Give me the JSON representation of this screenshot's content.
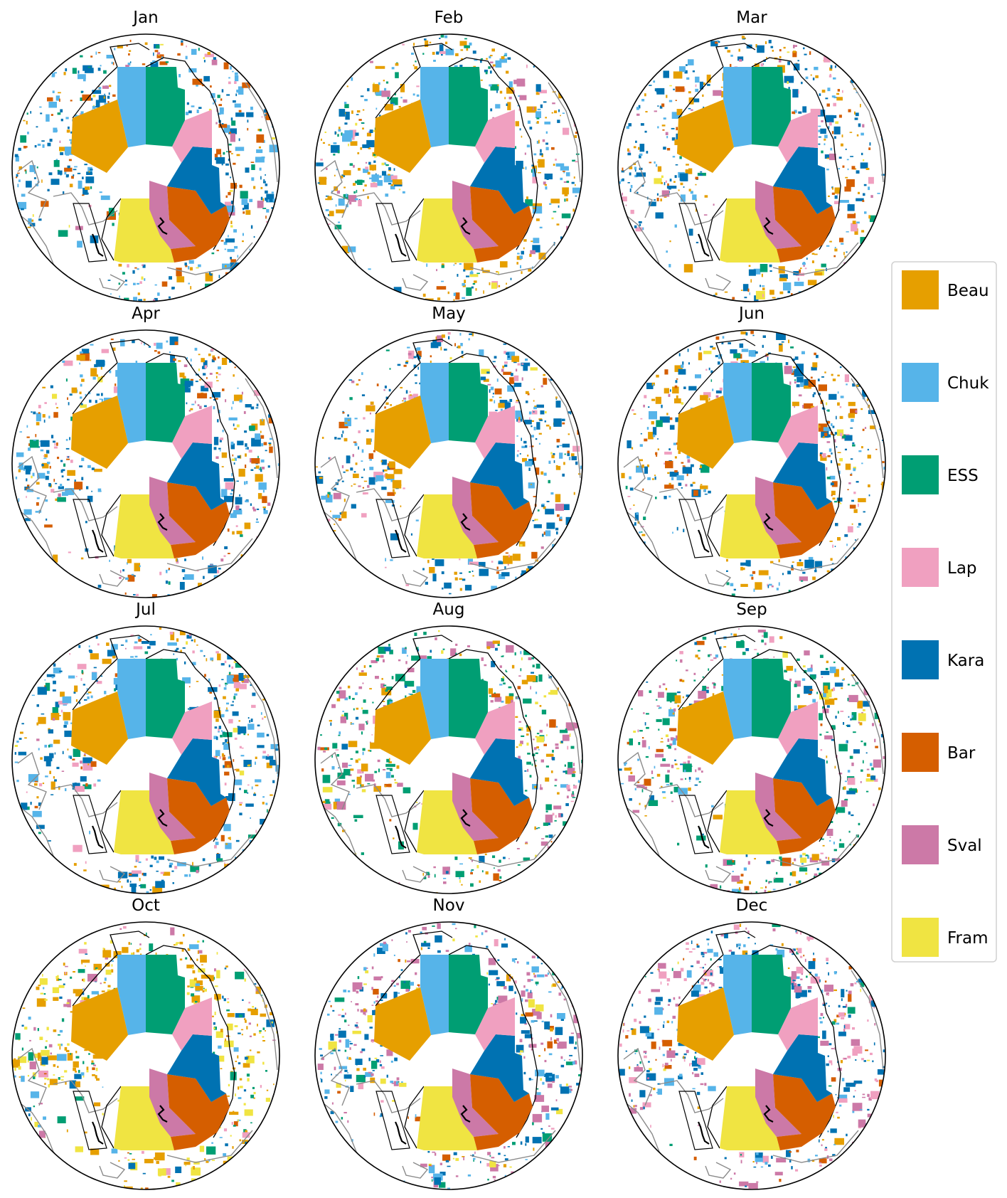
{
  "figure": {
    "panels": [
      {
        "month": "Jan"
      },
      {
        "month": "Feb"
      },
      {
        "month": "Mar"
      },
      {
        "month": "Apr"
      },
      {
        "month": "May"
      },
      {
        "month": "Jun"
      },
      {
        "month": "Jul"
      },
      {
        "month": "Aug"
      },
      {
        "month": "Sep"
      },
      {
        "month": "Oct"
      },
      {
        "month": "Nov"
      },
      {
        "month": "Dec"
      }
    ],
    "legend": [
      {
        "label": "Beau",
        "color": "#E69F00"
      },
      {
        "label": "Chuk",
        "color": "#56B4E9"
      },
      {
        "label": "ESS",
        "color": "#009E73"
      },
      {
        "label": "Lap",
        "color": "#F0A0C0"
      },
      {
        "label": "Kara",
        "color": "#0072B2"
      },
      {
        "label": "Bar",
        "color": "#D55E00"
      },
      {
        "label": "Sval",
        "color": "#CC79A7"
      },
      {
        "label": "Fram",
        "color": "#F0E442"
      }
    ]
  }
}
